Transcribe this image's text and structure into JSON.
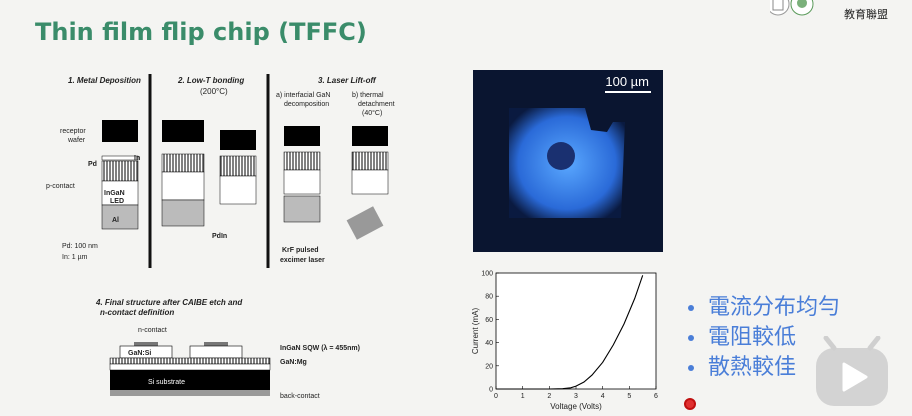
{
  "slide": {
    "title": "Thin film flip chip (TFFC)",
    "header_logo_text": "教育聯盟"
  },
  "process_figure": {
    "step1": "1. Metal Deposition",
    "step2": "2. Low-T bonding",
    "step2_sub": "(200°C)",
    "step3": "3. Laser Lift-off",
    "step3a": "a) interfacial GaN",
    "step3a2": "decomposition",
    "step3b": "b) thermal",
    "step3b2": "detachment",
    "step3b3": "(40°C)",
    "receptor": "receptor",
    "wafer": "wafer",
    "pd": "Pd",
    "in": "In",
    "pcontact": "p-contact",
    "led1": "In",
    "led1b": "Ga",
    "led1c": "N",
    "led2": "LED",
    "al2o3": "Al",
    "pdin": "PdIn",
    "krf1": "KrF pulsed",
    "krf2": "excimer laser",
    "pd_thick": "Pd: 100 nm",
    "in_thick": "In: 1 µm",
    "step4": "4. Final structure after CAIBE etch and",
    "step4b": "n-contact definition",
    "ncontact": "n-contact",
    "gansi": "GaN:Si",
    "ingan": "InGaN SQW (λ = 455nm)",
    "ganmg": "GaN:Mg",
    "sisub": "Si substrate",
    "backcontact": "back-contact"
  },
  "micrograph": {
    "scale_label": "100 µm"
  },
  "chart_data": {
    "type": "line",
    "xlabel": "Voltage (Volts)",
    "ylabel": "Current (mA)",
    "xlim": [
      0,
      6
    ],
    "ylim": [
      0,
      100
    ],
    "x_ticks": [
      "0",
      "1",
      "2",
      "3",
      "4",
      "5",
      "6"
    ],
    "y_ticks": [
      "0",
      "20",
      "40",
      "60",
      "80",
      "100"
    ],
    "series": [
      {
        "x": [
          0,
          1,
          2,
          2.5,
          2.8,
          3.0,
          3.3,
          3.6,
          4.0,
          4.4,
          4.8,
          5.2,
          5.5
        ],
        "y": [
          0,
          0,
          0,
          0.3,
          1,
          2.5,
          6,
          12,
          23,
          38,
          56,
          78,
          98
        ]
      }
    ]
  },
  "bullets": [
    {
      "text": "電流分布均勻"
    },
    {
      "text": "電阻較低"
    },
    {
      "text": "散熱較佳"
    }
  ],
  "colors": {
    "title": "#3a8c6a",
    "bullet": "#4a7ed8",
    "play_button": "#cfcfcf"
  },
  "icons": {
    "play": "play-icon",
    "logo": "university-logo-icon"
  }
}
